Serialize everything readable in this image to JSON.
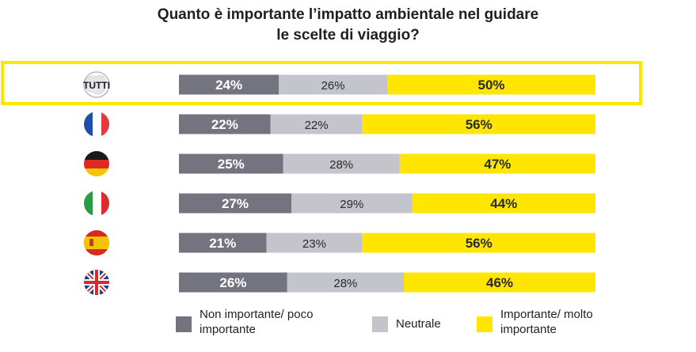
{
  "title_line1": "Quanto è importante l’impatto ambientale nel guidare",
  "title_line2": "le scelte di viaggio?",
  "chart_data": {
    "type": "bar",
    "orientation": "horizontal",
    "stacked": true,
    "normalized_percent": true,
    "categories": [
      "TUTTI",
      "France",
      "Germany",
      "Italy",
      "Spain",
      "United Kingdom"
    ],
    "category_icons": [
      "europe-map-icon",
      "france-flag-icon",
      "germany-flag-icon",
      "italy-flag-icon",
      "spain-flag-icon",
      "uk-flag-icon"
    ],
    "series": [
      {
        "name": "Non importante/ poco importante",
        "color": "#747480",
        "values": [
          24,
          22,
          25,
          27,
          21,
          26
        ]
      },
      {
        "name": "Neutrale",
        "color": "#c4c4cd",
        "values": [
          26,
          22,
          28,
          29,
          23,
          28
        ]
      },
      {
        "name": "Importante/ molto importante",
        "color": "#ffe600",
        "values": [
          50,
          56,
          47,
          44,
          56,
          46
        ]
      }
    ],
    "value_suffix": "%",
    "highlighted_category": "TUTTI",
    "highlight_color": "#ffe600",
    "xlim": [
      0,
      100
    ],
    "legend_position": "bottom"
  },
  "legend": {
    "item1_line1": "Non importante/ poco",
    "item1_line2": "importante",
    "item2": "Neutrale",
    "item3_line1": "Importante/ molto",
    "item3_line2": "importante"
  }
}
